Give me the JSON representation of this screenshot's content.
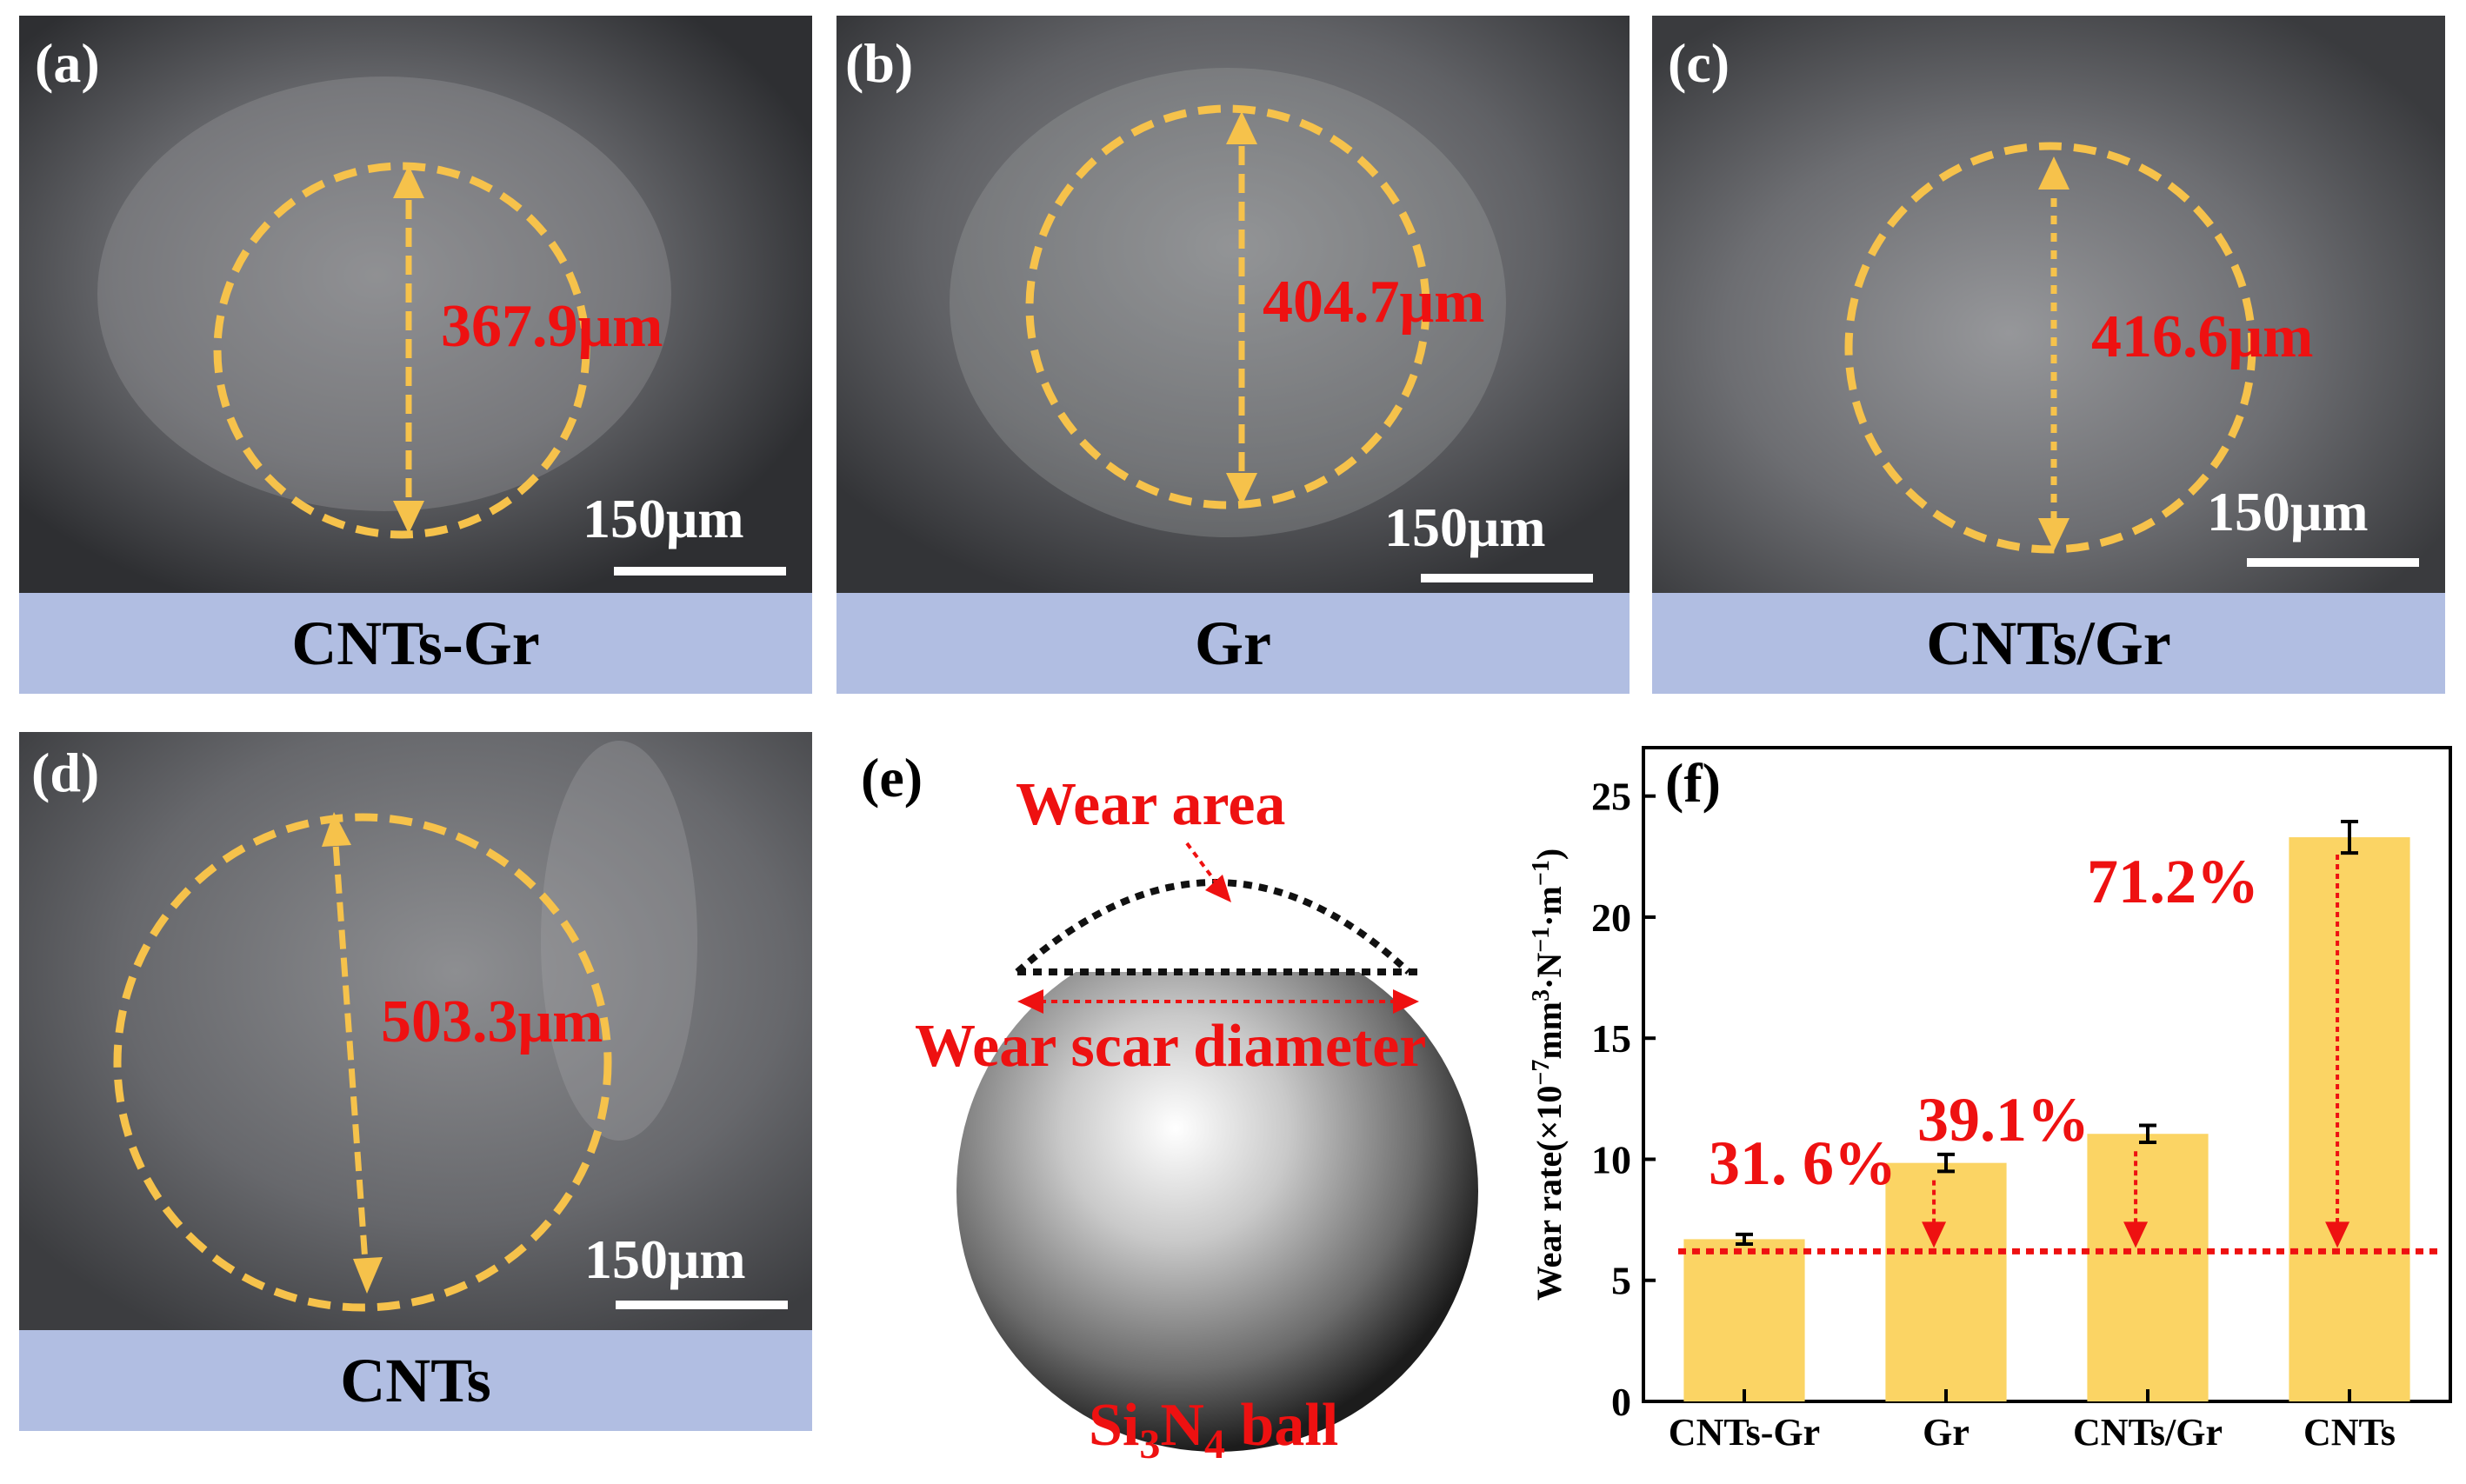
{
  "panels": [
    {
      "label": "(a)",
      "measurement": "367.9μm",
      "scale": "150μm",
      "sample": "CNTs-Gr"
    },
    {
      "label": "(b)",
      "measurement": "404.7μm",
      "scale": "150μm",
      "sample": "Gr"
    },
    {
      "label": "(c)",
      "measurement": "416.6μm",
      "scale": "150μm",
      "sample": "CNTs/Gr"
    },
    {
      "label": "(d)",
      "measurement": "503.3μm",
      "scale": "150μm",
      "sample": "CNTs"
    }
  ],
  "schematic": {
    "label": "(e)",
    "wear_area": "Wear area",
    "wear_scar_diameter": "Wear scar diameter",
    "ball_prefix": "Si",
    "ball_sub1": "3",
    "ball_mid": "N",
    "ball_sub2": "4",
    "ball_suffix": " ball"
  },
  "chart_data": {
    "label": "(f)",
    "type": "bar",
    "categories": [
      "CNTs-Gr",
      "Gr",
      "CNTs/Gr",
      "CNTs"
    ],
    "series": [
      {
        "values": [
          6.7,
          9.85,
          11.05,
          23.3
        ],
        "errors": [
          0.2,
          0.35,
          0.35,
          0.65
        ]
      }
    ],
    "ylabel_parts": [
      "Wear rate(×10",
      "−7",
      "mm",
      "3",
      "·N",
      "−1",
      "·m",
      "−1",
      ")"
    ],
    "ylim": [
      0,
      27
    ],
    "yticks": [
      0,
      5,
      10,
      15,
      20,
      25
    ],
    "reference_value": 6.2,
    "annotations": [
      "31. 6%",
      "39.1%",
      "71.2%"
    ],
    "bar_color": "#fbd464",
    "annotation_color": "#ee1111"
  }
}
